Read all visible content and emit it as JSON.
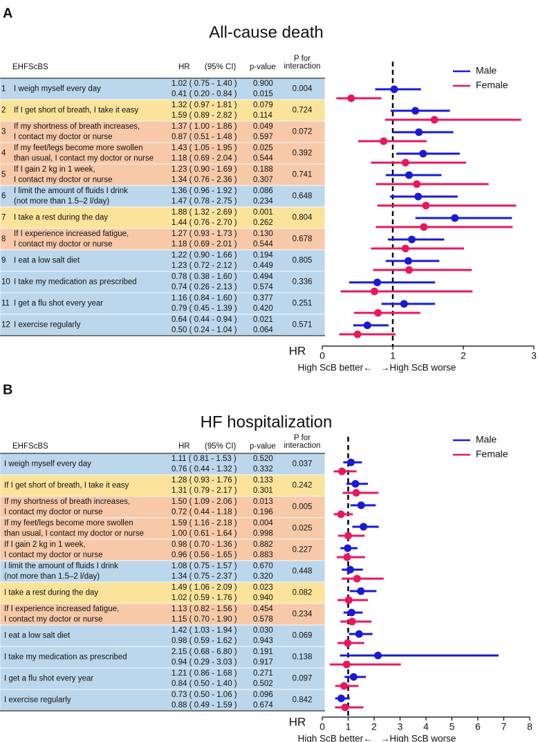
{
  "chart_data": [
    {
      "type": "forest",
      "panel": "A",
      "title": "All-cause death",
      "headers": {
        "item": "EHFScBS",
        "hr": "HR",
        "ci": "(95% CI)",
        "p": "p-value",
        "p_interaction": [
          "P for",
          "interaction"
        ]
      },
      "row_numbers": [
        1,
        2,
        3,
        4,
        5,
        6,
        7,
        8,
        9,
        10,
        11,
        12
      ],
      "items": [
        [
          "I weigh myself every day"
        ],
        [
          "If I get short of breath, I take it easy"
        ],
        [
          "If my shortness of breath increases,",
          "I contact my doctor or nurse"
        ],
        [
          "If my feet/legs become more swollen",
          "than usual, I contact my doctor or nurse"
        ],
        [
          "If I gain 2 kg in 1 week,",
          "I contact my doctor or nurse"
        ],
        [
          "I limit the amount of fluids I drink",
          "(not more than 1.5–2 l/day)"
        ],
        [
          "I take a rest during the day"
        ],
        [
          "If I experience increased fatigue,",
          "I contact my doctor or nurse"
        ],
        [
          "I eat a low salt diet"
        ],
        [
          "I take my medication as prescribed"
        ],
        [
          "I get a flu shot every year"
        ],
        [
          "I exercise regularly"
        ]
      ],
      "row_colors": [
        "#bcd7ec",
        "#fbe39b",
        "#f7c9a9",
        "#f7c9a9",
        "#f7c9a9",
        "#bcd7ec",
        "#fbe39b",
        "#f7c9a9",
        "#bcd7ec",
        "#bcd7ec",
        "#bcd7ec",
        "#bcd7ec"
      ],
      "series": [
        {
          "name": "Male",
          "color": "#1a1ad6",
          "values": [
            1.02,
            1.32,
            1.37,
            1.43,
            1.23,
            1.36,
            1.88,
            1.27,
            1.22,
            0.78,
            1.16,
            0.64
          ],
          "lower": [
            0.75,
            0.97,
            1.0,
            1.05,
            0.9,
            0.96,
            1.32,
            0.93,
            0.9,
            0.38,
            0.84,
            0.44
          ],
          "upper": [
            1.4,
            1.81,
            1.86,
            1.95,
            1.69,
            1.92,
            2.69,
            1.73,
            1.66,
            1.6,
            1.6,
            0.94
          ],
          "value_labels": [
            "1.02 ( 0.75 - 1.40 )",
            "1.32 ( 0.97 - 1.81 )",
            "1.37 ( 1.00 - 1.86 )",
            "1.43 ( 1.05 - 1.95 )",
            "1.23 ( 0.90 - 1.69 )",
            "1.36 ( 0.96 - 1.92 )",
            "1.88 ( 1.32 - 2.69 )",
            "1.27 ( 0.93 - 1.73 )",
            "1.22 ( 0.90 - 1.66 )",
            "0.78 ( 0.38 - 1.60 )",
            "1.16 ( 0.84 - 1.60 )",
            "0.64 ( 0.44 - 0.94 )"
          ],
          "p_values": [
            "0.900",
            "0.079",
            "0.049",
            "0.025",
            "0.188",
            "0.086",
            "0.001",
            "0.130",
            "0.194",
            "0.494",
            "0.377",
            "0.021"
          ]
        },
        {
          "name": "Female",
          "color": "#e8175d",
          "values": [
            0.41,
            1.59,
            0.87,
            1.18,
            1.34,
            1.47,
            1.44,
            1.18,
            1.23,
            0.74,
            0.79,
            0.5
          ],
          "lower": [
            0.2,
            0.89,
            0.51,
            0.69,
            0.76,
            0.78,
            0.76,
            0.69,
            0.72,
            0.26,
            0.45,
            0.24
          ],
          "upper": [
            0.84,
            2.82,
            1.48,
            2.04,
            2.36,
            2.75,
            2.7,
            2.01,
            2.12,
            2.13,
            1.39,
            1.04
          ],
          "value_labels": [
            "0.41 ( 0.20 - 0.84 )",
            "1.59 ( 0.89 - 2.82 )",
            "0.87 ( 0.51 - 1.48 )",
            "1.18 ( 0.69 - 2.04 )",
            "1.34 ( 0.76 - 2.36 )",
            "1.47 ( 0.78 - 2.75 )",
            "1.44 ( 0.76 - 2.70 )",
            "1.18 ( 0.69 - 2.01 )",
            "1.23 ( 0.72 - 2.12 )",
            "0.74 ( 0.26 - 2.13 )",
            "0.79 ( 0.45 - 1.39 )",
            "0.50 ( 0.24 - 1.04 )"
          ],
          "p_values": [
            "0.015",
            "0.114",
            "0.597",
            "0.544",
            "0.307",
            "0.234",
            "0.262",
            "0.544",
            "0.449",
            "0.574",
            "0.420",
            "0.064"
          ]
        }
      ],
      "p_interaction": [
        "0.004",
        "0.724",
        "0.072",
        "0.392",
        "0.741",
        "0.648",
        "0.804",
        "0.678",
        "0.805",
        "0.336",
        "0.251",
        "0.571"
      ],
      "xlim": [
        0,
        3
      ],
      "xticks": [
        0,
        1,
        2,
        3
      ],
      "reference": 1,
      "xlabel": "HR",
      "x_caption": "High ScB better←   →High ScB worse",
      "legend": "upper right"
    },
    {
      "type": "forest",
      "panel": "B",
      "title": "HF hospitalization",
      "headers": {
        "item": "EHFScBS",
        "hr": "HR",
        "ci": "(95% CI)",
        "p": "p-value",
        "p_interaction": [
          "P for",
          "interaction"
        ]
      },
      "items": [
        [
          "I weigh myself every day"
        ],
        [
          "If I get short of breath, I take it easy"
        ],
        [
          "If my shortness of breath increases,",
          "I contact my doctor or nurse"
        ],
        [
          "If my feet/legs become more swollen",
          "than usual, I contact my doctor or nurse"
        ],
        [
          "If I gain 2 kg in 1 week,",
          "I contact my doctor or nurse"
        ],
        [
          "I limit the amount of fluids I drink",
          "(not more than 1.5–2 l/day)"
        ],
        [
          "I take a rest during the day"
        ],
        [
          "If I experience increased fatigue,",
          "I contact my doctor or nurse"
        ],
        [
          "I eat a low salt diet"
        ],
        [
          "I take my medication as prescribed"
        ],
        [
          "I get a flu shot every year"
        ],
        [
          "I exercise regularly"
        ]
      ],
      "row_colors": [
        "#bcd7ec",
        "#fbe39b",
        "#f7c9a9",
        "#f7c9a9",
        "#f7c9a9",
        "#bcd7ec",
        "#fbe39b",
        "#f7c9a9",
        "#bcd7ec",
        "#bcd7ec",
        "#bcd7ec",
        "#bcd7ec"
      ],
      "series": [
        {
          "name": "Male",
          "color": "#1a1ad6",
          "values": [
            1.11,
            1.28,
            1.5,
            1.59,
            0.98,
            1.08,
            1.49,
            1.13,
            1.42,
            2.15,
            1.21,
            0.73
          ],
          "lower": [
            0.81,
            0.93,
            1.09,
            1.16,
            0.7,
            0.75,
            1.06,
            0.82,
            1.03,
            0.68,
            0.86,
            0.5
          ],
          "upper": [
            1.53,
            1.76,
            2.06,
            2.18,
            1.36,
            1.57,
            2.09,
            1.56,
            1.94,
            6.8,
            1.68,
            1.06
          ],
          "value_labels": [
            "1.11 ( 0.81 - 1.53 )",
            "1.28 ( 0.93 - 1.76 )",
            "1.50 ( 1.09 - 2.06 )",
            "1.59 ( 1.16 - 2.18 )",
            "0.98 ( 0.70 - 1.36 )",
            "1.08 ( 0.75 - 1.57 )",
            "1.49 ( 1.06 - 2.09 )",
            "1.13 ( 0.82 - 1.56 )",
            "1.42 ( 1.03 - 1.94 )",
            "2.15 ( 0.68 - 6.80 )",
            "1.21 ( 0.86 - 1.68 )",
            "0.73 ( 0.50 - 1.06 )"
          ],
          "p_values": [
            "0.520",
            "0.133",
            "0.013",
            "0.004",
            "0.882",
            "0.670",
            "0.023",
            "0.454",
            "0.030",
            "0.191",
            "0.271",
            "0.096"
          ]
        },
        {
          "name": "Female",
          "color": "#e8175d",
          "values": [
            0.76,
            1.31,
            0.72,
            1.0,
            0.96,
            1.34,
            1.02,
            1.15,
            0.98,
            0.94,
            0.84,
            0.88
          ],
          "lower": [
            0.44,
            0.79,
            0.44,
            0.61,
            0.56,
            0.75,
            0.59,
            0.7,
            0.59,
            0.29,
            0.5,
            0.49
          ],
          "upper": [
            1.32,
            2.17,
            1.18,
            1.64,
            1.65,
            2.37,
            1.76,
            1.9,
            1.62,
            3.03,
            1.4,
            1.59
          ],
          "value_labels": [
            "0.76 ( 0.44 - 1.32 )",
            "1.31 ( 0.79 - 2.17 )",
            "0.72 ( 0.44 - 1.18 )",
            "1.00 ( 0.61 - 1.64 )",
            "0.96 ( 0.56 - 1.65 )",
            "1.34 ( 0.75 - 2.37 )",
            "1.02 ( 0.59 - 1.76 )",
            "1.15 ( 0.70 - 1.90 )",
            "0.98 ( 0.59 - 1.62 )",
            "0.94 ( 0.29 - 3.03 )",
            "0.84 ( 0.50 - 1.40 )",
            "0.88 ( 0.49 - 1.59 )"
          ],
          "p_values": [
            "0.332",
            "0.301",
            "0.196",
            "0.998",
            "0.883",
            "0.320",
            "0.940",
            "0.578",
            "0.943",
            "0.917",
            "0.502",
            "0.674"
          ]
        }
      ],
      "p_interaction": [
        "0.037",
        "0.242",
        "0.005",
        "0.025",
        "0.227",
        "0.448",
        "0.082",
        "0.234",
        "0.069",
        "0.138",
        "0.097",
        "0.842"
      ],
      "xlim": [
        0,
        8
      ],
      "xticks": [
        0,
        1,
        2,
        3,
        4,
        5,
        6,
        7,
        8
      ],
      "reference": 1,
      "xlabel": "HR",
      "x_caption": "High ScB better←   →High ScB worse",
      "legend": "upper right"
    }
  ]
}
